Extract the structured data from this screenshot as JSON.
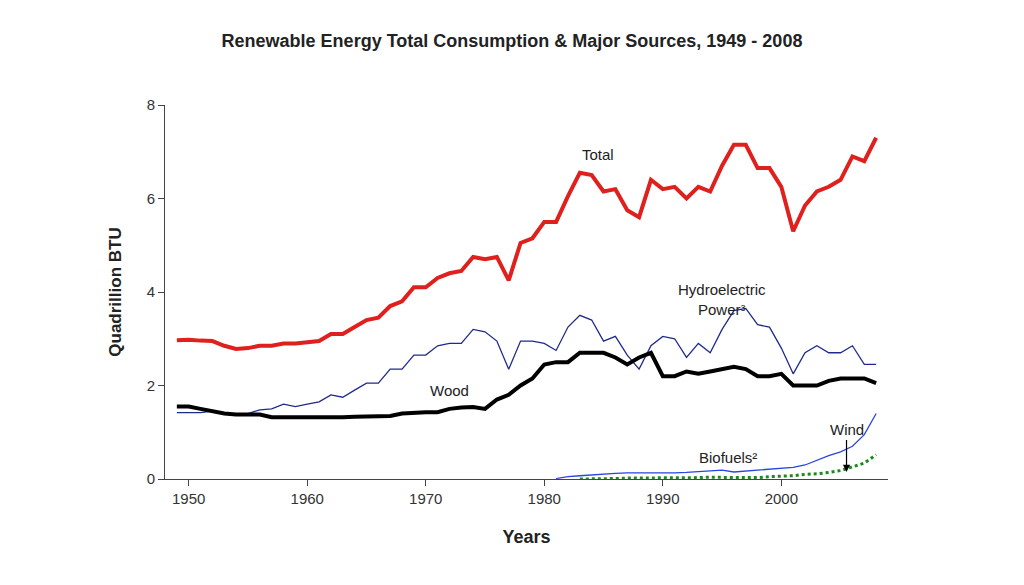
{
  "chart_data": {
    "type": "line",
    "title": "Renewable Energy Total Consumption & Major Sources, 1949 - 2008",
    "x_label": "Years",
    "y_label": "Quadrillion BTU",
    "x": [
      1949,
      1950,
      1951,
      1952,
      1953,
      1954,
      1955,
      1956,
      1957,
      1958,
      1959,
      1960,
      1961,
      1962,
      1963,
      1964,
      1965,
      1966,
      1967,
      1968,
      1969,
      1970,
      1971,
      1972,
      1973,
      1974,
      1975,
      1976,
      1977,
      1978,
      1979,
      1980,
      1981,
      1982,
      1983,
      1984,
      1985,
      1986,
      1987,
      1988,
      1989,
      1990,
      1991,
      1992,
      1993,
      1994,
      1995,
      1996,
      1997,
      1998,
      1999,
      2000,
      2001,
      2002,
      2003,
      2004,
      2005,
      2006,
      2007,
      2008
    ],
    "series": [
      {
        "name": "Total",
        "color": "#e0201c",
        "line_style": "solid",
        "values": [
          2.97,
          2.98,
          2.96,
          2.95,
          2.85,
          2.78,
          2.8,
          2.85,
          2.85,
          2.9,
          2.9,
          2.93,
          2.95,
          3.1,
          3.1,
          3.25,
          3.4,
          3.45,
          3.7,
          3.8,
          4.1,
          4.1,
          4.3,
          4.4,
          4.45,
          4.75,
          4.7,
          4.75,
          4.25,
          5.05,
          5.15,
          5.5,
          5.5,
          6.05,
          6.55,
          6.5,
          6.15,
          6.2,
          5.75,
          5.6,
          6.4,
          6.2,
          6.25,
          6.0,
          6.25,
          6.15,
          6.7,
          7.15,
          7.15,
          6.65,
          6.65,
          6.25,
          5.3,
          5.85,
          6.15,
          6.25,
          6.4,
          6.9,
          6.8,
          7.3
        ]
      },
      {
        "name": "Hydroelectric Power³",
        "color": "#1f2a8c",
        "line_style": "solid",
        "values": [
          1.42,
          1.42,
          1.42,
          1.45,
          1.4,
          1.38,
          1.4,
          1.48,
          1.5,
          1.6,
          1.55,
          1.6,
          1.65,
          1.8,
          1.75,
          1.9,
          2.05,
          2.05,
          2.35,
          2.35,
          2.65,
          2.65,
          2.85,
          2.9,
          2.9,
          3.2,
          3.15,
          2.95,
          2.35,
          2.95,
          2.95,
          2.9,
          2.75,
          3.25,
          3.5,
          3.4,
          2.95,
          3.05,
          2.65,
          2.35,
          2.85,
          3.05,
          3.0,
          2.6,
          2.9,
          2.7,
          3.2,
          3.6,
          3.65,
          3.3,
          3.25,
          2.8,
          2.25,
          2.7,
          2.85,
          2.7,
          2.7,
          2.85,
          2.45,
          2.45
        ]
      },
      {
        "name": "Wood",
        "color": "#000000",
        "line_style": "solid",
        "values": [
          1.55,
          1.55,
          1.5,
          1.45,
          1.4,
          1.38,
          1.38,
          1.38,
          1.32,
          1.32,
          1.32,
          1.3,
          1.3,
          1.3,
          1.32,
          1.33,
          1.33,
          1.35,
          1.35,
          1.4,
          1.42,
          1.43,
          1.43,
          1.5,
          1.53,
          1.54,
          1.5,
          1.7,
          1.8,
          2.0,
          2.15,
          2.45,
          2.5,
          2.5,
          2.7,
          2.7,
          2.7,
          2.6,
          2.45,
          2.6,
          2.7,
          2.2,
          2.2,
          2.3,
          2.25,
          2.3,
          2.35,
          2.4,
          2.35,
          2.2,
          2.2,
          2.25,
          2.0,
          2.0,
          2.0,
          2.1,
          2.15,
          2.15,
          2.15,
          2.05
        ]
      },
      {
        "name": "Biofuels²",
        "color": "#2a44e0",
        "line_style": "solid",
        "values": [
          null,
          null,
          null,
          null,
          null,
          null,
          null,
          null,
          null,
          null,
          null,
          null,
          null,
          null,
          null,
          null,
          null,
          null,
          null,
          null,
          null,
          null,
          null,
          null,
          null,
          null,
          null,
          null,
          null,
          null,
          null,
          null,
          0.01,
          0.05,
          0.07,
          0.09,
          0.1,
          0.12,
          0.13,
          0.13,
          0.13,
          0.12,
          0.13,
          0.14,
          0.16,
          0.17,
          0.19,
          0.15,
          0.17,
          0.19,
          0.2,
          0.23,
          0.25,
          0.3,
          0.4,
          0.5,
          0.58,
          0.7,
          0.95,
          1.4
        ]
      },
      {
        "name": "Wind",
        "color": "#1a8a1a",
        "line_style": "dotted",
        "values": [
          null,
          null,
          null,
          null,
          null,
          null,
          null,
          null,
          null,
          null,
          null,
          null,
          null,
          null,
          null,
          null,
          null,
          null,
          null,
          null,
          null,
          null,
          null,
          null,
          null,
          null,
          null,
          null,
          null,
          null,
          null,
          null,
          null,
          null,
          0.0,
          0.0,
          0.01,
          0.01,
          0.02,
          0.02,
          0.02,
          0.03,
          0.03,
          0.03,
          0.03,
          0.04,
          0.03,
          0.03,
          0.03,
          0.03,
          0.05,
          0.06,
          0.07,
          0.1,
          0.11,
          0.14,
          0.18,
          0.26,
          0.34,
          0.52
        ]
      }
    ],
    "xlim": [
      1948,
      2009
    ],
    "xticks": [
      1950,
      1960,
      1970,
      1980,
      1990,
      2000
    ],
    "ylim": [
      0,
      8
    ],
    "yticks": [
      0,
      2,
      4,
      6,
      8
    ],
    "grid": false
  }
}
